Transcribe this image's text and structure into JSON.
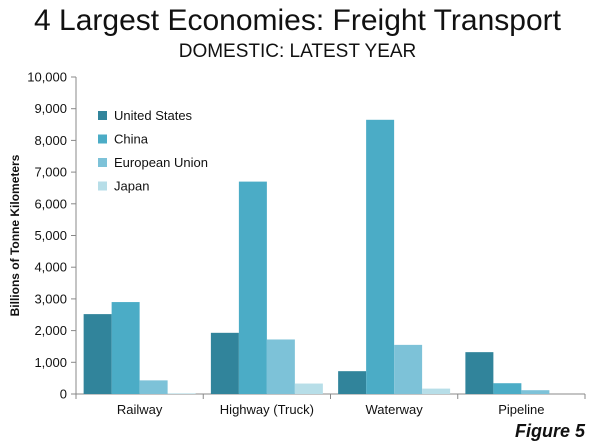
{
  "chart_data": {
    "type": "bar",
    "title": "4 Largest Economies: Freight Transport",
    "subtitle": "DOMESTIC: LATEST YEAR",
    "xlabel": "",
    "ylabel": "Billions of Tonne Kilometers",
    "ylim": [
      0,
      10000
    ],
    "yticks": [
      0,
      1000,
      2000,
      3000,
      4000,
      5000,
      6000,
      7000,
      8000,
      9000,
      10000
    ],
    "ytick_labels": [
      "0",
      "1,000",
      "2,000",
      "3,000",
      "4,000",
      "5,000",
      "6,000",
      "7,000",
      "8,000",
      "9,000",
      "10,000"
    ],
    "grid": false,
    "legend_position": "top-left",
    "categories": [
      "Railway",
      "Highway (Truck)",
      "Waterway",
      "Pipeline"
    ],
    "series": [
      {
        "name": "United States",
        "color": "#31849b",
        "values": [
          2520,
          1930,
          720,
          1320
        ]
      },
      {
        "name": "China",
        "color": "#4bacc6",
        "values": [
          2900,
          6700,
          8650,
          340
        ]
      },
      {
        "name": "European Union",
        "color": "#7dc2d8",
        "values": [
          430,
          1720,
          1550,
          120
        ]
      },
      {
        "name": "Japan",
        "color": "#b7dee8",
        "values": [
          20,
          330,
          170,
          0
        ]
      }
    ]
  },
  "figure_label": "Figure 5"
}
